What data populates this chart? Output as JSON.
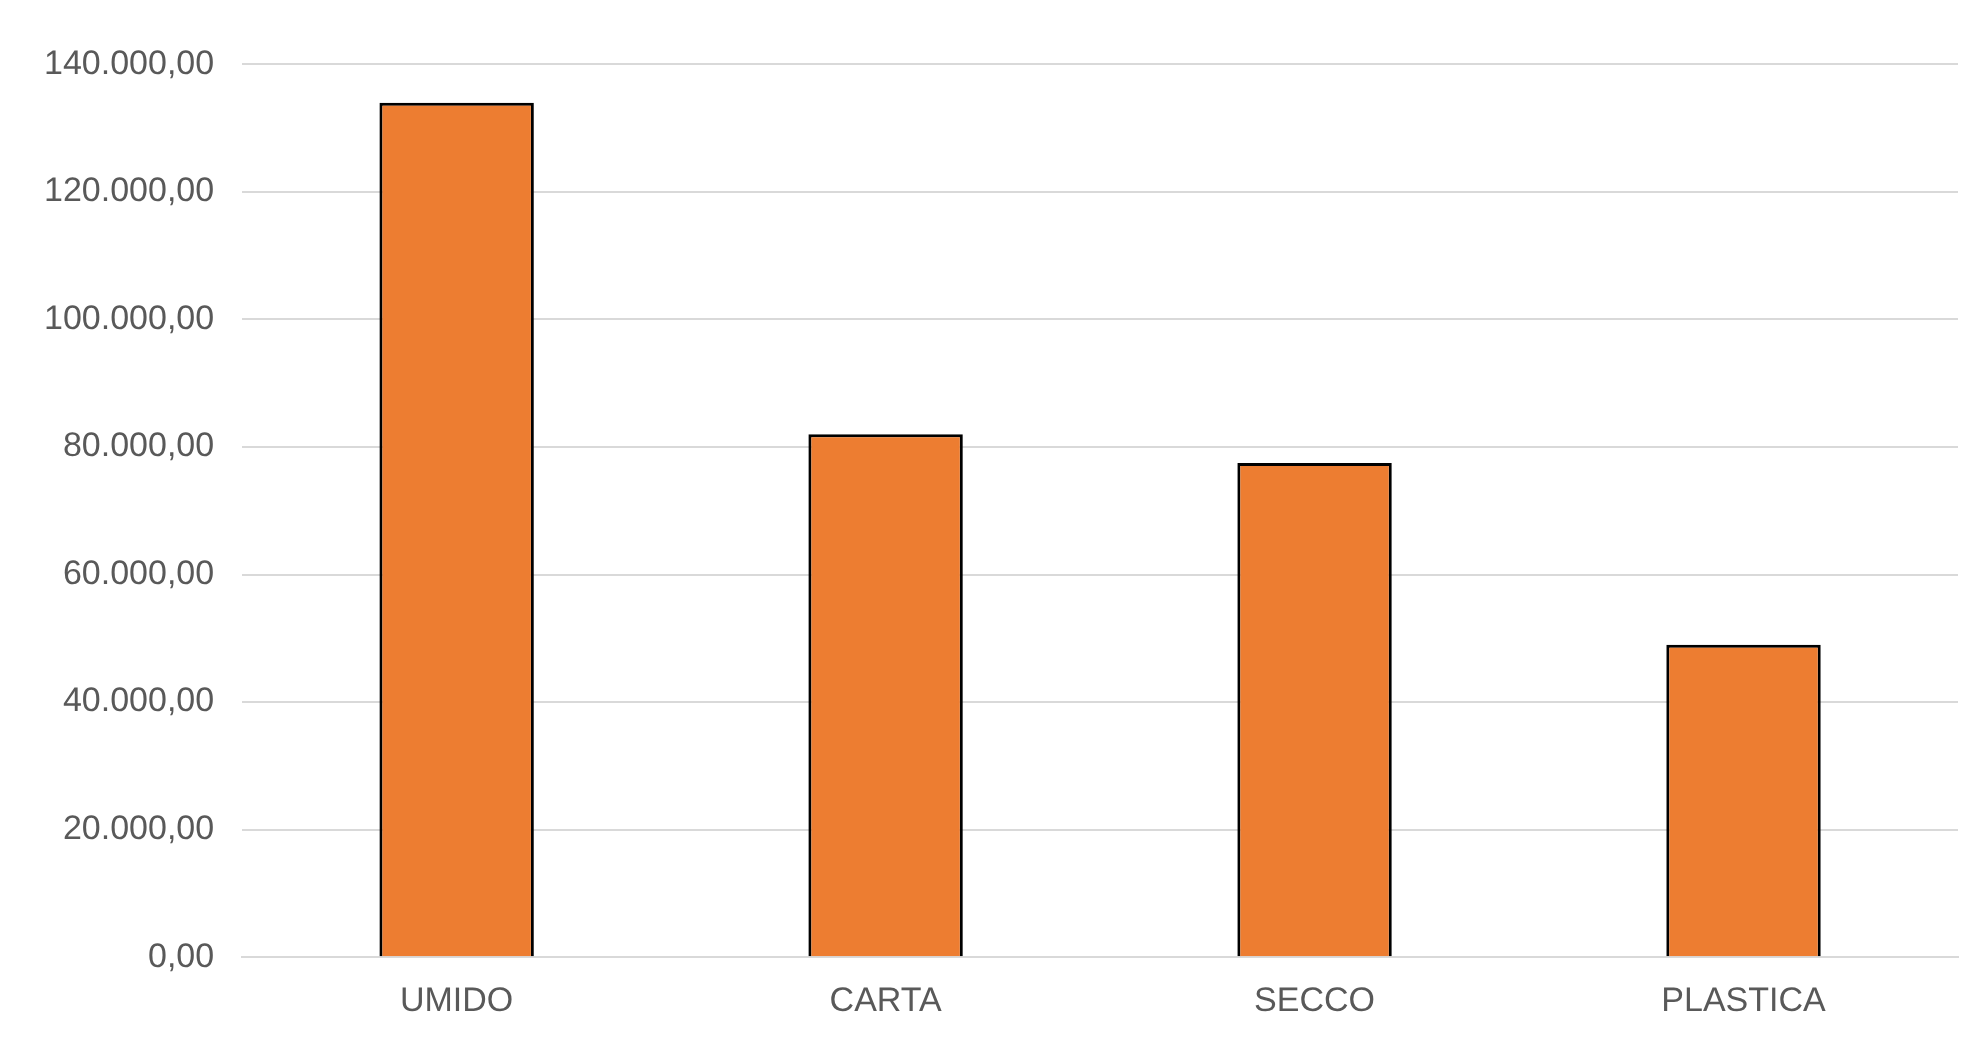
{
  "chart_data": {
    "type": "bar",
    "categories": [
      "UMIDO",
      "CARTA",
      "SECCO",
      "PLASTICA"
    ],
    "values": [
      134000,
      82000,
      77500,
      49000
    ],
    "color": "#ed7d31",
    "ylim": [
      0,
      140000
    ],
    "yticks": [
      {
        "value": 0,
        "label": "0,00"
      },
      {
        "value": 20000,
        "label": "20.000,00"
      },
      {
        "value": 40000,
        "label": "40.000,00"
      },
      {
        "value": 60000,
        "label": "60.000,00"
      },
      {
        "value": 80000,
        "label": "80.000,00"
      },
      {
        "value": 100000,
        "label": "100.000,00"
      },
      {
        "value": 120000,
        "label": "120.000,00"
      },
      {
        "value": 140000,
        "label": "140.000,00"
      }
    ],
    "grid": "y"
  }
}
